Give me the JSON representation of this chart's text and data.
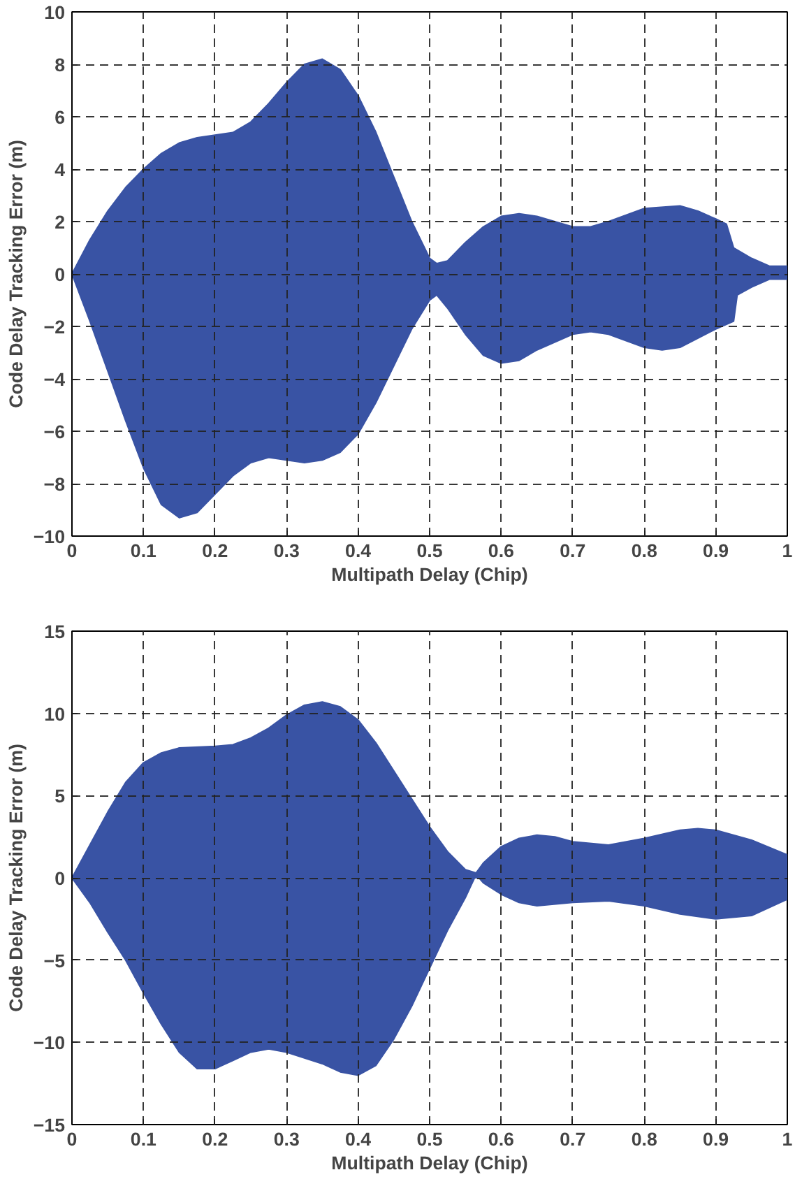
{
  "chart_data": [
    {
      "type": "area",
      "xlabel": "Multipath Delay (Chip)",
      "ylabel": "Code Delay Tracking Error (m)",
      "xlim": [
        0,
        1
      ],
      "ylim": [
        -10,
        10
      ],
      "xticks": [
        0,
        0.1,
        0.2,
        0.3,
        0.4,
        0.5,
        0.6,
        0.7,
        0.8,
        0.9,
        {
          "value": 1,
          "label": "1"
        }
      ],
      "yticks": [
        -10,
        -8,
        -6,
        -4,
        -2,
        0,
        2,
        4,
        6,
        8,
        10
      ],
      "grid": true,
      "line_style": "dashed",
      "series": [
        {
          "color": "#3953a4",
          "x": [
            0,
            0.025,
            0.05,
            0.075,
            0.1,
            0.125,
            0.15,
            0.175,
            0.2,
            0.225,
            0.25,
            0.275,
            0.3,
            0.325,
            0.35,
            0.375,
            0.4,
            0.425,
            0.45,
            0.475,
            0.5,
            0.51,
            0.525,
            0.55,
            0.575,
            0.6,
            0.625,
            0.65,
            0.7,
            0.725,
            0.75,
            0.8,
            0.85,
            0.875,
            0.9,
            0.915,
            0.925,
            0.95,
            0.975,
            1.0
          ],
          "values": [
            0,
            1.3,
            2.4,
            3.3,
            4.0,
            4.6,
            5.0,
            5.2,
            5.3,
            5.4,
            5.8,
            6.5,
            7.3,
            8.0,
            8.2,
            7.8,
            6.8,
            5.4,
            3.7,
            2.0,
            0.6,
            0.4,
            0.5,
            1.2,
            1.8,
            2.2,
            2.3,
            2.2,
            1.8,
            1.8,
            2.0,
            2.5,
            2.6,
            2.4,
            2.1,
            1.9,
            1.0,
            0.6,
            0.3,
            0.3
          ]
        },
        {
          "color": "#3953a4",
          "x": [
            0,
            0.025,
            0.05,
            0.075,
            0.1,
            0.125,
            0.15,
            0.175,
            0.2,
            0.225,
            0.25,
            0.275,
            0.3,
            0.325,
            0.35,
            0.375,
            0.4,
            0.425,
            0.45,
            0.475,
            0.5,
            0.51,
            0.525,
            0.55,
            0.575,
            0.6,
            0.625,
            0.65,
            0.7,
            0.725,
            0.75,
            0.8,
            0.825,
            0.85,
            0.9,
            0.925,
            0.93,
            0.95,
            0.975,
            1.0
          ],
          "values": [
            0,
            -1.8,
            -3.7,
            -5.6,
            -7.4,
            -8.8,
            -9.3,
            -9.1,
            -8.4,
            -7.7,
            -7.2,
            -7.0,
            -7.1,
            -7.2,
            -7.1,
            -6.8,
            -6.1,
            -4.9,
            -3.5,
            -2.1,
            -1.0,
            -0.8,
            -1.3,
            -2.3,
            -3.1,
            -3.4,
            -3.3,
            -2.9,
            -2.3,
            -2.2,
            -2.3,
            -2.8,
            -2.9,
            -2.8,
            -2.1,
            -1.8,
            -0.8,
            -0.5,
            -0.2,
            -0.2
          ]
        }
      ]
    },
    {
      "type": "area",
      "xlabel": "Multipath Delay (Chip)",
      "ylabel": "Code Delay Tracking Error (m)",
      "xlim": [
        0,
        1
      ],
      "ylim": [
        -15,
        15
      ],
      "xticks": [
        0,
        0.1,
        0.2,
        0.3,
        0.4,
        0.5,
        0.6,
        0.7,
        0.8,
        0.9,
        {
          "value": 1,
          "label": "1"
        }
      ],
      "yticks": [
        -15,
        -10,
        -5,
        0,
        5,
        10,
        15
      ],
      "grid": true,
      "line_style": "dashed",
      "series": [
        {
          "color": "#3953a4",
          "x": [
            0,
            0.025,
            0.05,
            0.075,
            0.1,
            0.125,
            0.15,
            0.2,
            0.225,
            0.25,
            0.275,
            0.3,
            0.325,
            0.35,
            0.375,
            0.4,
            0.425,
            0.45,
            0.475,
            0.5,
            0.525,
            0.55,
            0.565,
            0.575,
            0.6,
            0.625,
            0.65,
            0.675,
            0.7,
            0.75,
            0.8,
            0.85,
            0.875,
            0.9,
            0.95,
            1.0
          ],
          "values": [
            0,
            2.0,
            4.0,
            5.8,
            7.0,
            7.6,
            7.9,
            8.0,
            8.1,
            8.5,
            9.1,
            9.9,
            10.5,
            10.7,
            10.4,
            9.6,
            8.2,
            6.5,
            4.8,
            3.1,
            1.6,
            0.5,
            0.3,
            0.9,
            1.9,
            2.4,
            2.6,
            2.5,
            2.2,
            2.0,
            2.4,
            2.9,
            3.0,
            2.9,
            2.3,
            1.4
          ]
        },
        {
          "color": "#3953a4",
          "x": [
            0,
            0.025,
            0.05,
            0.075,
            0.1,
            0.125,
            0.15,
            0.175,
            0.2,
            0.225,
            0.25,
            0.275,
            0.3,
            0.35,
            0.375,
            0.4,
            0.425,
            0.45,
            0.475,
            0.5,
            0.525,
            0.55,
            0.565,
            0.575,
            0.6,
            0.625,
            0.65,
            0.7,
            0.75,
            0.8,
            0.85,
            0.9,
            0.95,
            1.0
          ],
          "values": [
            0,
            -1.5,
            -3.3,
            -5.0,
            -7.0,
            -8.9,
            -10.6,
            -11.6,
            -11.6,
            -11.1,
            -10.6,
            -10.4,
            -10.6,
            -11.3,
            -11.8,
            -12.0,
            -11.4,
            -9.8,
            -7.8,
            -5.5,
            -3.2,
            -1.2,
            0.2,
            -0.3,
            -1.0,
            -1.5,
            -1.7,
            -1.5,
            -1.4,
            -1.7,
            -2.2,
            -2.5,
            -2.3,
            -1.3
          ]
        }
      ]
    }
  ]
}
